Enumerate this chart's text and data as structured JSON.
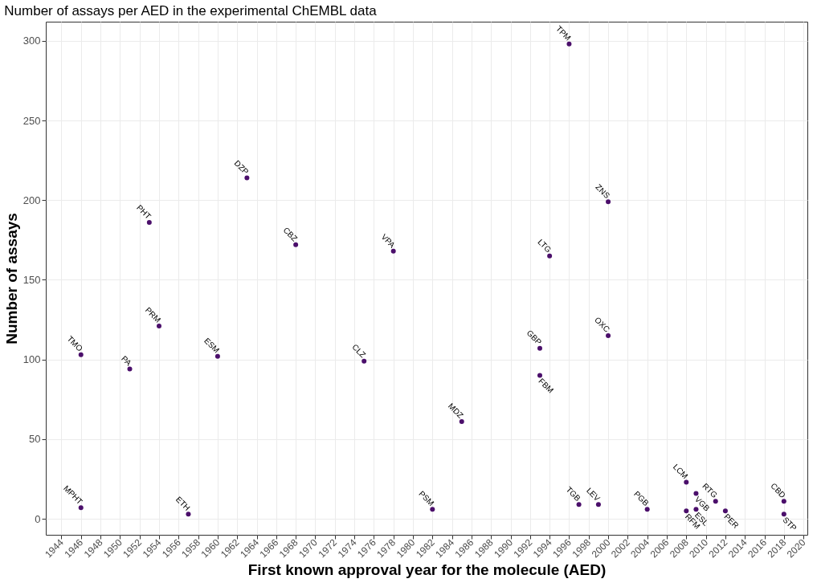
{
  "chart_data": {
    "type": "scatter",
    "title": "Number of assays per AED in the experimental ChEMBL data",
    "xlabel": "First known approval year for the molecule (AED)",
    "ylabel": "Number of assays",
    "x": [
      1946,
      1946,
      1951,
      1953,
      1954,
      1957,
      1960,
      1963,
      1968,
      1975,
      1978,
      1982,
      1985,
      1993,
      1993,
      1994,
      1996,
      1997,
      1999,
      2000,
      2000,
      2004,
      2008,
      2008,
      2009,
      2009,
      2011,
      2012,
      2018,
      2018
    ],
    "series": [
      {
        "color": "#4b0f6b",
        "values": [
          103,
          7,
          94,
          186,
          121,
          3,
          102,
          214,
          172,
          99,
          168,
          6,
          61,
          107,
          90,
          165,
          298,
          9,
          9,
          199,
          115,
          6,
          23,
          5,
          16,
          6,
          11,
          5,
          11,
          3
        ]
      }
    ],
    "annotations": [
      {
        "text": "TMO",
        "x": 1946,
        "y": 103
      },
      {
        "text": "MPHT",
        "x": 1946,
        "y": 7
      },
      {
        "text": "PA",
        "x": 1951,
        "y": 94
      },
      {
        "text": "PHT",
        "x": 1953,
        "y": 186
      },
      {
        "text": "PRM",
        "x": 1954,
        "y": 121
      },
      {
        "text": "ETH",
        "x": 1957,
        "y": 3
      },
      {
        "text": "ESM",
        "x": 1960,
        "y": 102
      },
      {
        "text": "DZP",
        "x": 1963,
        "y": 214
      },
      {
        "text": "CBZ",
        "x": 1968,
        "y": 172
      },
      {
        "text": "CLZ",
        "x": 1975,
        "y": 99
      },
      {
        "text": "VPA",
        "x": 1978,
        "y": 168
      },
      {
        "text": "PSM",
        "x": 1982,
        "y": 6
      },
      {
        "text": "MDZ",
        "x": 1985,
        "y": 61
      },
      {
        "text": "GBP",
        "x": 1993,
        "y": 107
      },
      {
        "text": "FBM",
        "x": 1993,
        "y": 90
      },
      {
        "text": "LTG",
        "x": 1994,
        "y": 165
      },
      {
        "text": "TPM",
        "x": 1996,
        "y": 298
      },
      {
        "text": "TGB",
        "x": 1997,
        "y": 9
      },
      {
        "text": "LEV",
        "x": 1999,
        "y": 9
      },
      {
        "text": "ZNS",
        "x": 2000,
        "y": 199
      },
      {
        "text": "OXC",
        "x": 2000,
        "y": 115
      },
      {
        "text": "PGB",
        "x": 2004,
        "y": 6
      },
      {
        "text": "LCM",
        "x": 2008,
        "y": 23
      },
      {
        "text": "RFM",
        "x": 2008,
        "y": 5
      },
      {
        "text": "VGB",
        "x": 2009,
        "y": 16
      },
      {
        "text": "ESL",
        "x": 2009,
        "y": 6
      },
      {
        "text": "RTG",
        "x": 2011,
        "y": 11
      },
      {
        "text": "PER",
        "x": 2012,
        "y": 5
      },
      {
        "text": "CBD",
        "x": 2018,
        "y": 11
      },
      {
        "text": "STP",
        "x": 2018,
        "y": 3
      }
    ],
    "xlim": [
      1942.4,
      2020.4
    ],
    "ylim": [
      -10,
      312
    ],
    "xticks": [
      1944,
      1946,
      1948,
      1950,
      1952,
      1954,
      1956,
      1958,
      1960,
      1962,
      1964,
      1966,
      1968,
      1970,
      1972,
      1974,
      1976,
      1978,
      1980,
      1982,
      1984,
      1986,
      1988,
      1990,
      1992,
      1994,
      1996,
      1998,
      2000,
      2002,
      2004,
      2006,
      2008,
      2010,
      2012,
      2014,
      2016,
      2018,
      2020
    ],
    "yticks": [
      0,
      50,
      100,
      150,
      200,
      250,
      300
    ],
    "grid": true,
    "marker": "circle"
  }
}
